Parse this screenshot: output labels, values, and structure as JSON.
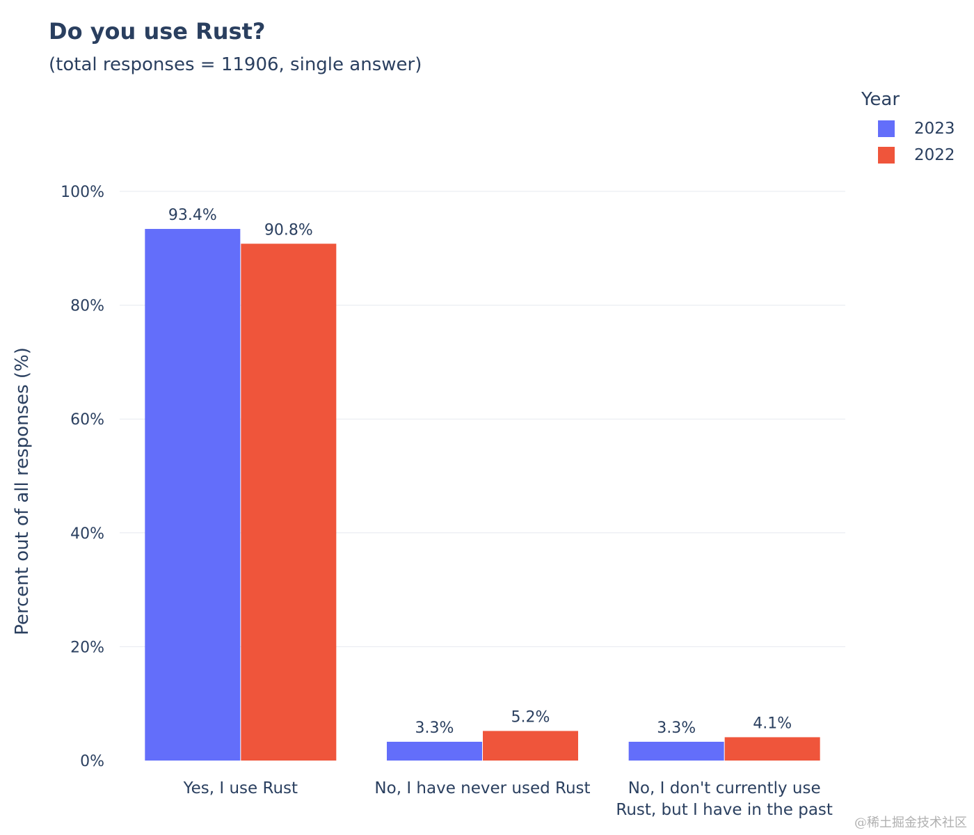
{
  "title": "Do you use Rust?",
  "subtitle": "(total responses = 11906, single answer)",
  "legend_title": "Year",
  "watermark": "@稀土掘金技术社区",
  "chart_data": {
    "type": "bar",
    "categories": [
      [
        "Yes, I use Rust"
      ],
      [
        "No, I have never used Rust"
      ],
      [
        "No, I don't currently use",
        "Rust, but I have in the past"
      ]
    ],
    "series": [
      {
        "name": "2023",
        "color": "#636efa",
        "values": [
          93.4,
          3.3,
          3.3
        ],
        "labels": [
          "93.4%",
          "3.3%",
          "3.3%"
        ]
      },
      {
        "name": "2022",
        "color": "#ef553b",
        "values": [
          90.8,
          5.2,
          4.1
        ],
        "labels": [
          "90.8%",
          "5.2%",
          "4.1%"
        ]
      }
    ],
    "ylabel": "Percent out of all responses (%)",
    "ylim": [
      0,
      100
    ],
    "yticks": [
      0,
      20,
      40,
      60,
      80,
      100
    ],
    "ytick_labels": [
      "0%",
      "20%",
      "40%",
      "60%",
      "80%",
      "100%"
    ],
    "grid": true,
    "legend_position": "top-right"
  }
}
